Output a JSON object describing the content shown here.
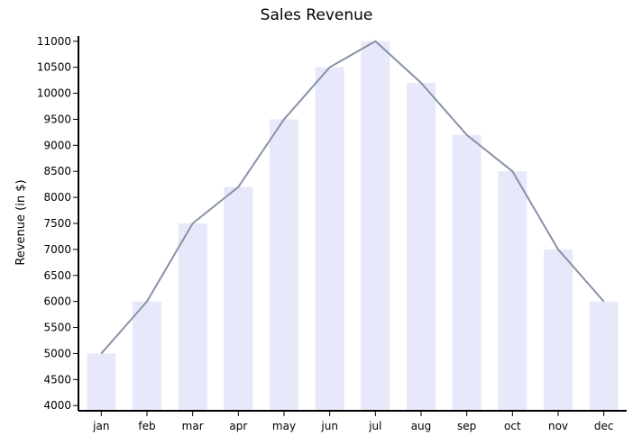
{
  "chart_data": {
    "type": "bar",
    "title": "Sales Revenue",
    "xlabel": "",
    "ylabel": "Revenue (in $)",
    "categories": [
      "jan",
      "feb",
      "mar",
      "apr",
      "may",
      "jun",
      "jul",
      "aug",
      "sep",
      "oct",
      "nov",
      "dec"
    ],
    "values": [
      5000,
      6000,
      7500,
      8200,
      9500,
      10500,
      11000,
      10200,
      9200,
      8500,
      7000,
      6000
    ],
    "line_values": [
      5000,
      6000,
      7500,
      8200,
      9500,
      10500,
      11000,
      10200,
      9200,
      8500,
      7000,
      6000
    ],
    "ylim": [
      3900,
      11100
    ],
    "yticks": [
      4000,
      4500,
      5000,
      5500,
      6000,
      6500,
      7000,
      7500,
      8000,
      8500,
      9000,
      9500,
      10000,
      10500,
      11000
    ],
    "grid": false,
    "legend": "none",
    "colors": {
      "bar": "#e8e8fb",
      "line": "#8792a6",
      "axis": "#000000"
    }
  }
}
